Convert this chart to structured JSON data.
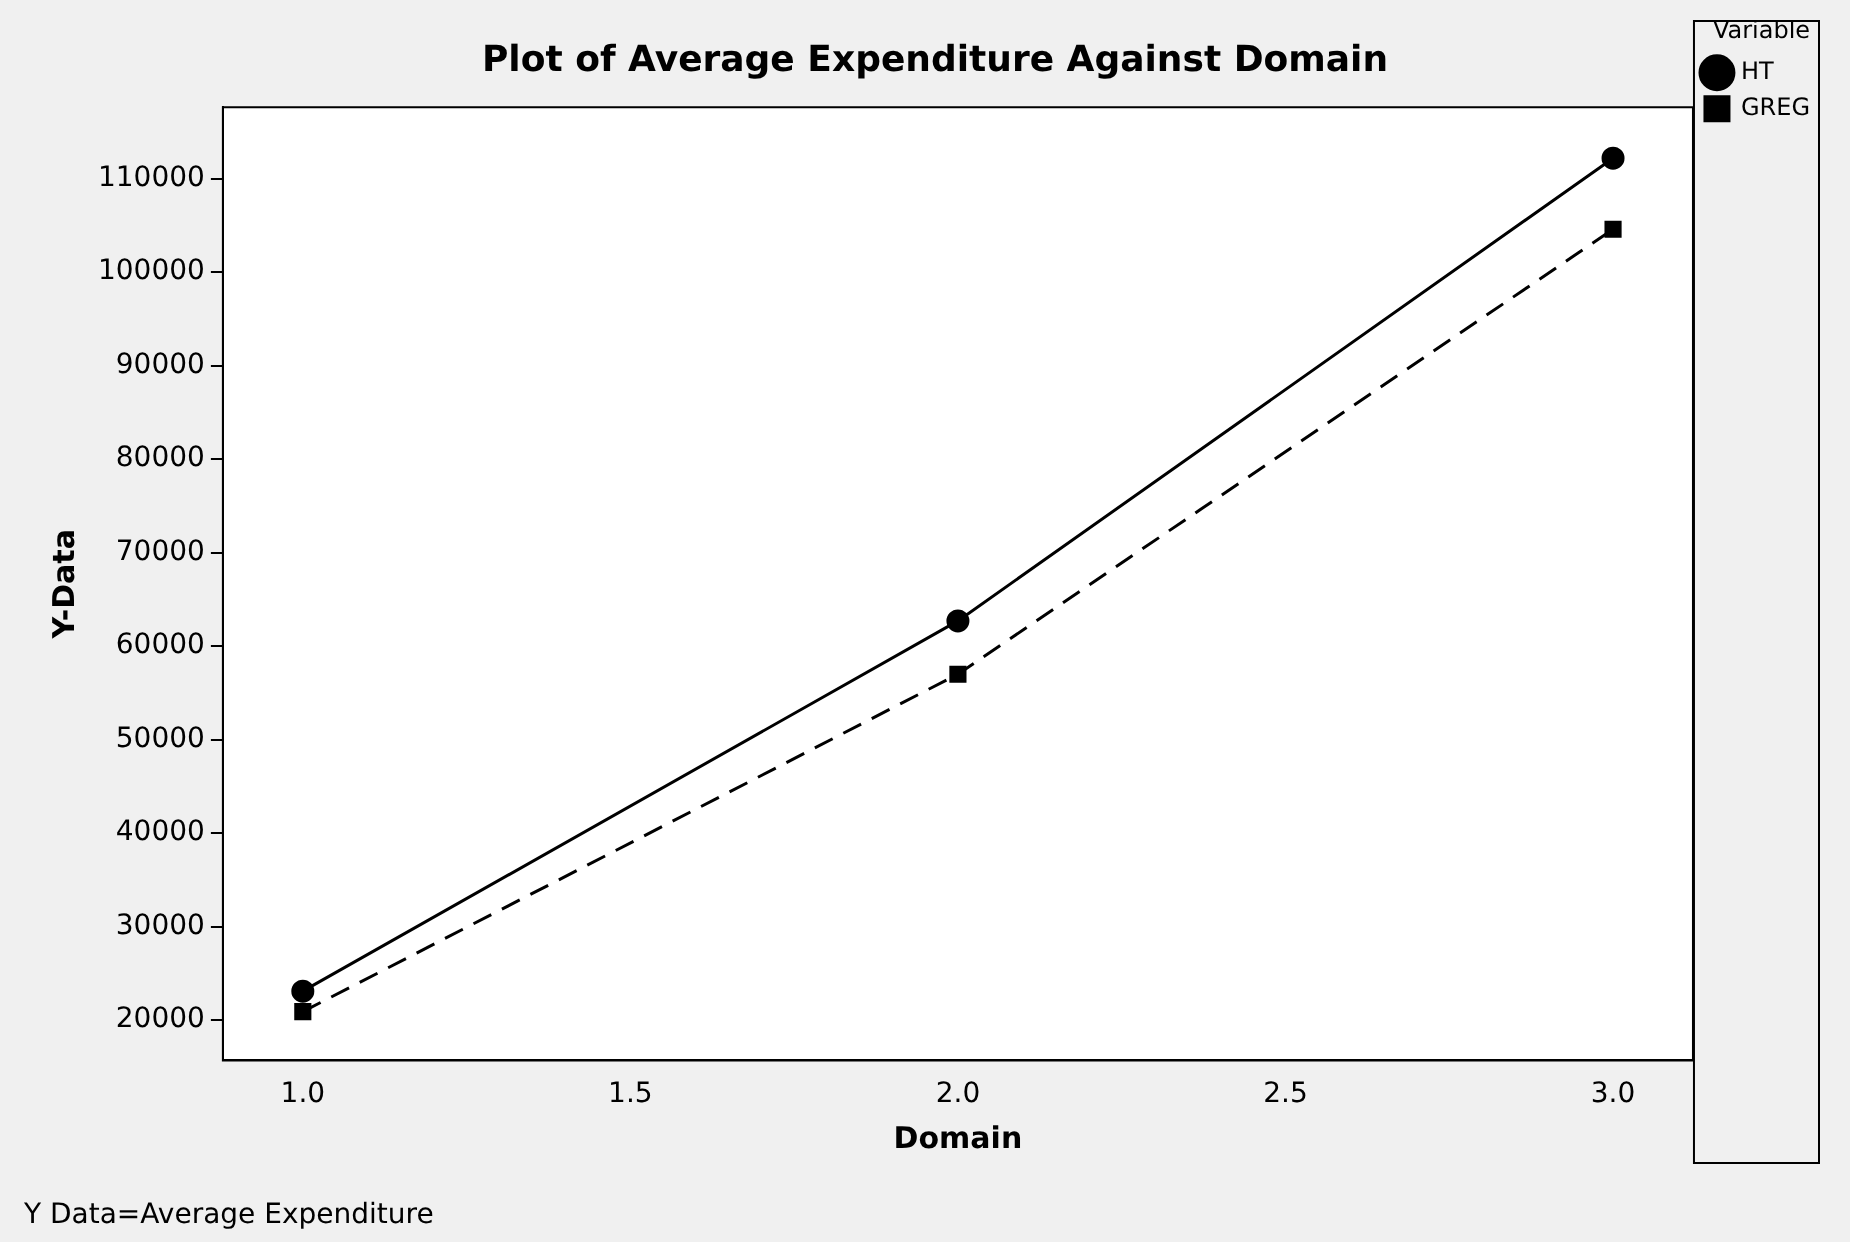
{
  "chart_data": {
    "type": "line",
    "title": "Plot of Average Expenditure Against Domain",
    "xlabel": "Domain",
    "ylabel": "Y-Data",
    "legend_title": "Variable",
    "legend": "top right",
    "x": [
      1,
      2,
      3
    ],
    "series": [
      {
        "name": "HT",
        "color": "#000000",
        "values": [
          23100,
          62700,
          112200
        ],
        "marker": "circle",
        "line_style": "solid"
      },
      {
        "name": "GREG",
        "color": "#000000",
        "values": [
          20900,
          57000,
          104600
        ],
        "marker": "square",
        "line_style": "dashed"
      }
    ],
    "xlim": [
      0.878,
      3.122
    ],
    "xticks": [
      {
        "value": 1,
        "label": "1.0"
      },
      {
        "value": 1.5,
        "label": "1.5"
      },
      {
        "value": 2,
        "label": "2.0"
      },
      {
        "value": 2.5,
        "label": "2.5"
      },
      {
        "value": 3,
        "label": "3.0"
      }
    ],
    "ylim": [
      15690,
      117650
    ],
    "yticks": [
      20000,
      30000,
      40000,
      50000,
      60000,
      70000,
      80000,
      90000,
      100000,
      110000
    ],
    "grid": false,
    "annotations": [
      "Y Data=Average Expenditure"
    ]
  }
}
